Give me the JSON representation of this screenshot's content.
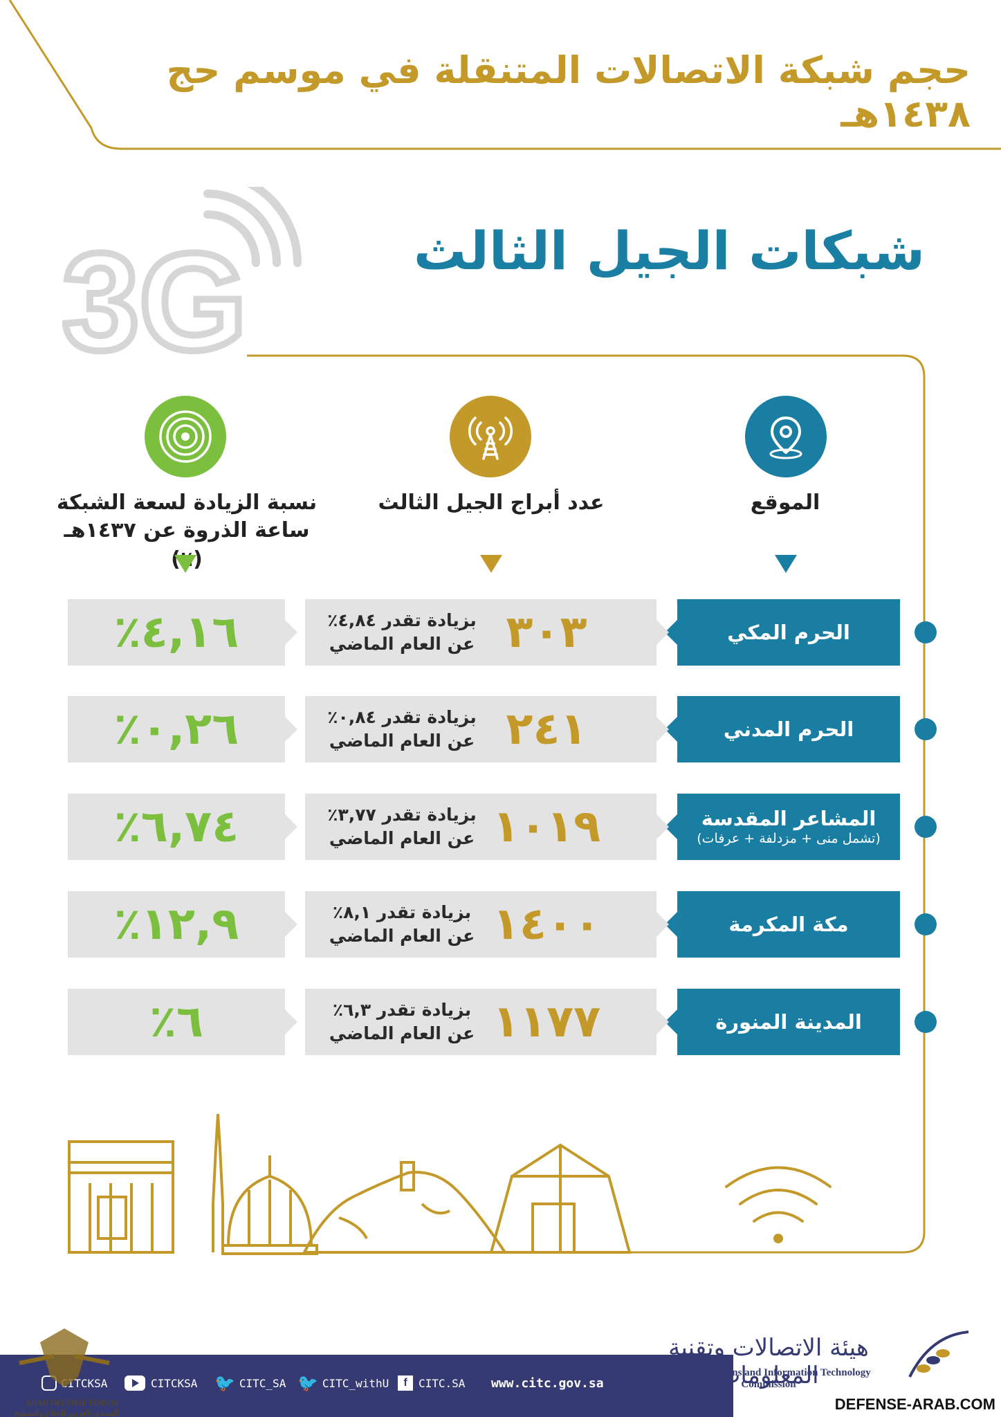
{
  "header": {
    "title": "حجم شبكة الاتصالات المتنقلة في موسم حج ١٤٣٨هـ",
    "subtitle": "شبكات الجيل الثالث",
    "badge_text": "3G"
  },
  "columns": {
    "location": {
      "label": "الموقع",
      "icon": "location-pin-icon",
      "color": "#1a7da2"
    },
    "towers": {
      "label": "عدد أبراج الجيل الثالث",
      "icon": "radio-tower-icon",
      "color": "#c39a2a"
    },
    "capacity": {
      "line1": "نسبة الزيادة لسعة الشبكة",
      "line2": "ساعة الذروة عن ١٤٣٧هـ (٪)",
      "icon": "radar-icon",
      "color": "#7cbf3f"
    }
  },
  "rows": [
    {
      "location": "الحرم المكي",
      "note": "",
      "towers": "٣٠٣",
      "increase_line1": "بزيادة تقدر ٤,٨٤٪",
      "increase_line2": "عن العام الماضي",
      "capacity": "٪٤,١٦"
    },
    {
      "location": "الحرم المدني",
      "note": "",
      "towers": "٢٤١",
      "increase_line1": "بزيادة تقدر ٠,٨٤٪",
      "increase_line2": "عن العام الماضي",
      "capacity": "٪٠,٢٦"
    },
    {
      "location": "المشاعر المقدسة",
      "note": "(تشمل منى + مزدلفة + عرفات)",
      "towers": "١٠١٩",
      "increase_line1": "بزيادة تقدر ٣,٧٧٪",
      "increase_line2": "عن العام الماضي",
      "capacity": "٪٦,٧٤"
    },
    {
      "location": "مكة المكرمة",
      "note": "",
      "towers": "١٤٠٠",
      "increase_line1": "بزيادة تقدر ٨,١٪",
      "increase_line2": "عن العام الماضي",
      "capacity": "٪١٢,٩"
    },
    {
      "location": "المدينة المنورة",
      "note": "",
      "towers": "١١٧٧",
      "increase_line1": "بزيادة تقدر ٦,٣٪",
      "increase_line2": "عن العام الماضي",
      "capacity": "٪٦"
    }
  ],
  "footer": {
    "instagram": "CITCKSA",
    "youtube": "CITCKSA",
    "twitter1": "CITC_SA",
    "twitter2": "CITC_withU",
    "facebook": "CITC.SA",
    "website": "www.citc.gov.sa",
    "org_ar": "هيئة الاتصالات وتقنية المعلومات",
    "org_en": "Communications and Information Technology Commission"
  },
  "watermark": {
    "site": "DEFENSE-ARAB.COM",
    "forum_en": "ARAB DEFENSE FORUM",
    "forum_ar": "المنتدى العربي للدفاع والتسليح"
  },
  "colors": {
    "gold": "#c39a2a",
    "blue": "#1a7da2",
    "green": "#7cbf3f",
    "navy": "#363a72",
    "grey_box": "#e3e3e3"
  }
}
